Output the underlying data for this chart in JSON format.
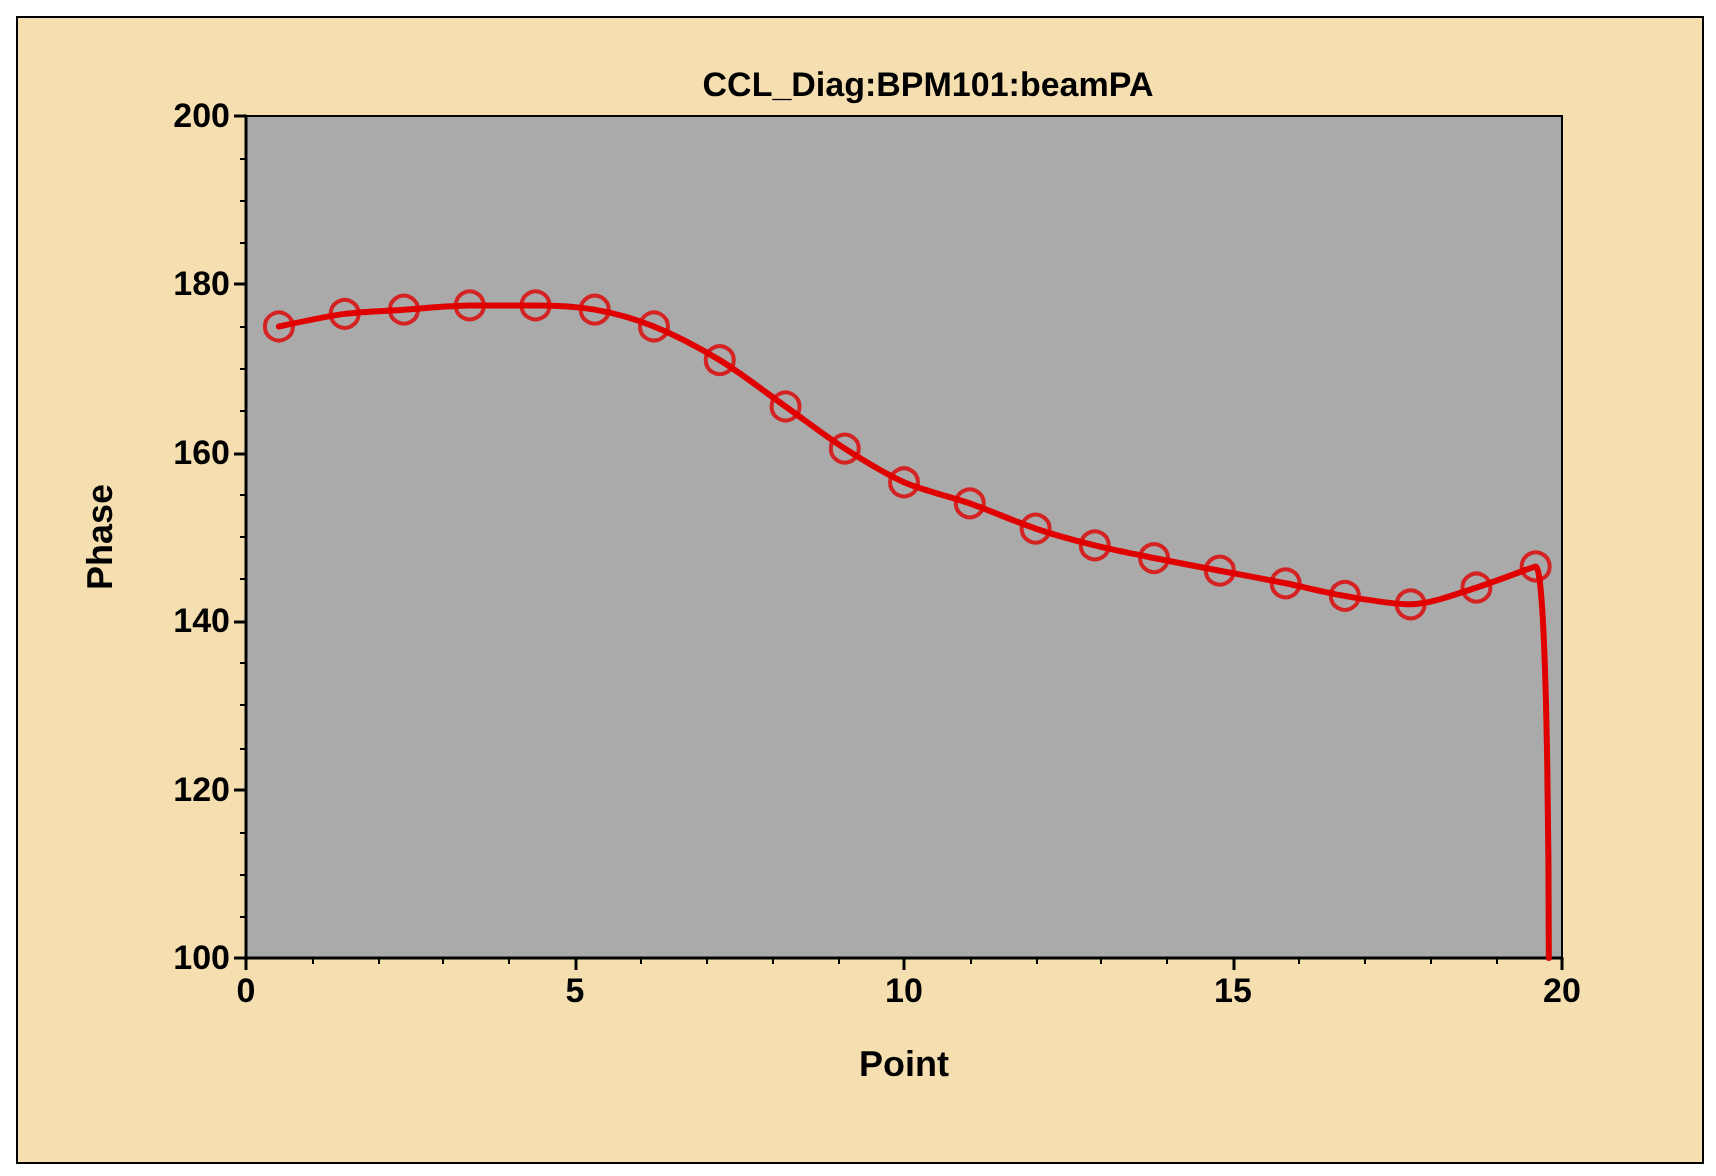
{
  "chart_data": {
    "type": "line",
    "title": "CCL_Diag:BPM101:beamPA",
    "xlabel": "Point",
    "ylabel": "Phase",
    "xlim": [
      0,
      20
    ],
    "xticks": [
      0,
      5,
      10,
      15,
      20
    ],
    "ylim": [
      100,
      200
    ],
    "yticks": [
      100,
      120,
      140,
      160,
      180,
      200
    ],
    "grid": false,
    "series": [
      {
        "color": "#e00000",
        "marker": "none",
        "line_style": "solid",
        "x": [
          0.5,
          1.5,
          2.4,
          3.4,
          4.4,
          5.3,
          6.2,
          7.2,
          8.2,
          9.1,
          10,
          11,
          12,
          12.9,
          13.8,
          14.8,
          15.8,
          16.7,
          17.7,
          18.7,
          19.6,
          19.8
        ],
        "values": [
          175,
          176.5,
          177,
          177.5,
          177.5,
          177,
          175,
          171,
          165.5,
          160.5,
          156.5,
          154,
          151,
          149,
          147.5,
          146,
          144.5,
          143,
          142,
          144,
          146.5,
          100
        ]
      },
      {
        "type": "scatter",
        "color": "#e00000",
        "marker": "circle",
        "x": [
          0.5,
          1.5,
          2.4,
          3.4,
          4.4,
          5.3,
          6.2,
          7.2,
          8.2,
          9.1,
          10,
          11,
          12,
          12.9,
          13.8,
          14.8,
          15.8,
          16.7,
          17.7,
          18.7,
          19.6
        ],
        "values": [
          175,
          176.5,
          177,
          177.5,
          177.5,
          177,
          175,
          171,
          165.5,
          160.5,
          156.5,
          154,
          151,
          149,
          147.5,
          146,
          144.5,
          143,
          142,
          144,
          146.5
        ]
      }
    ]
  }
}
